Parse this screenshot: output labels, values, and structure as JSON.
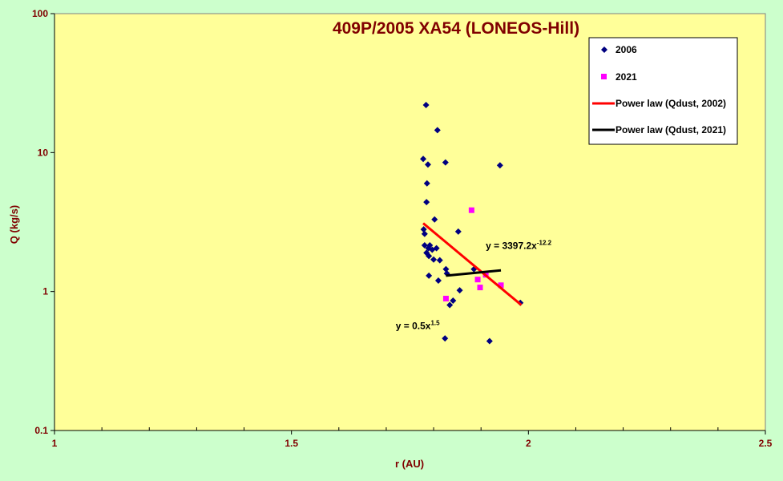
{
  "chart_data": {
    "type": "scatter",
    "title": "409P/2005 XA54 (LONEOS-Hill)",
    "xlabel": "r (AU)",
    "ylabel": "Q (kg/s)",
    "xlim": [
      1,
      2.5
    ],
    "ylim": [
      0.1,
      100
    ],
    "yscale": "log",
    "x_ticks": [
      {
        "value": 1,
        "label": "1"
      },
      {
        "value": 1.5,
        "label": "1.5"
      },
      {
        "value": 2,
        "label": "2"
      },
      {
        "value": 2.5,
        "label": "2.5"
      }
    ],
    "y_ticks": [
      {
        "value": 0.1,
        "label": "0.1"
      },
      {
        "value": 1,
        "label": "1"
      },
      {
        "value": 10,
        "label": "10"
      },
      {
        "value": 100,
        "label": "100"
      }
    ],
    "grid": false,
    "legend_position": "top-right",
    "series": [
      {
        "name": "2006",
        "marker": "diamond",
        "color": "#000080",
        "points": [
          [
            1.784,
            22.0
          ],
          [
            1.808,
            14.5
          ],
          [
            1.778,
            9.0
          ],
          [
            1.825,
            8.5
          ],
          [
            1.788,
            8.2
          ],
          [
            1.94,
            8.1
          ],
          [
            1.786,
            6.0
          ],
          [
            1.785,
            4.4
          ],
          [
            1.802,
            3.3
          ],
          [
            1.779,
            2.8
          ],
          [
            1.781,
            2.6
          ],
          [
            1.852,
            2.7
          ],
          [
            1.781,
            2.15
          ],
          [
            1.792,
            2.15
          ],
          [
            1.789,
            2.05
          ],
          [
            1.806,
            2.05
          ],
          [
            1.797,
            2.0
          ],
          [
            1.785,
            1.9
          ],
          [
            1.79,
            1.8
          ],
          [
            1.8,
            1.7
          ],
          [
            1.813,
            1.68
          ],
          [
            1.826,
            1.45
          ],
          [
            1.828,
            1.35
          ],
          [
            1.81,
            1.2
          ],
          [
            1.79,
            1.3
          ],
          [
            1.885,
            1.45
          ],
          [
            1.855,
            1.02
          ],
          [
            1.841,
            0.86
          ],
          [
            1.834,
            0.8
          ],
          [
            1.983,
            0.83
          ],
          [
            1.824,
            0.46
          ],
          [
            1.918,
            0.44
          ]
        ]
      },
      {
        "name": "2021",
        "marker": "square",
        "color": "#ff00ff",
        "points": [
          [
            1.88,
            3.85
          ],
          [
            1.893,
            1.22
          ],
          [
            1.898,
            1.07
          ],
          [
            1.91,
            1.32
          ],
          [
            1.942,
            1.11
          ],
          [
            1.826,
            0.89
          ]
        ]
      },
      {
        "name": "Power law (Qdust, 2002)",
        "type": "line",
        "color": "#ff0000",
        "fit": "y = 3397.2x^-12.2",
        "endpoints": [
          [
            1.778,
            3.1
          ],
          [
            1.985,
            0.8
          ]
        ]
      },
      {
        "name": "Power law (Qdust, 2021)",
        "type": "line",
        "color": "#000000",
        "fit": "y = 0.5x^1.5",
        "endpoints": [
          [
            1.826,
            1.3
          ],
          [
            1.942,
            1.42
          ]
        ]
      }
    ],
    "annotations": [
      {
        "text": "y = 3397.2x",
        "sup": "-12.2",
        "x": 1.91,
        "y": 2.02
      },
      {
        "text": "y = 0.5x",
        "sup": "1.5",
        "x": 1.72,
        "y": 0.538
      }
    ]
  }
}
